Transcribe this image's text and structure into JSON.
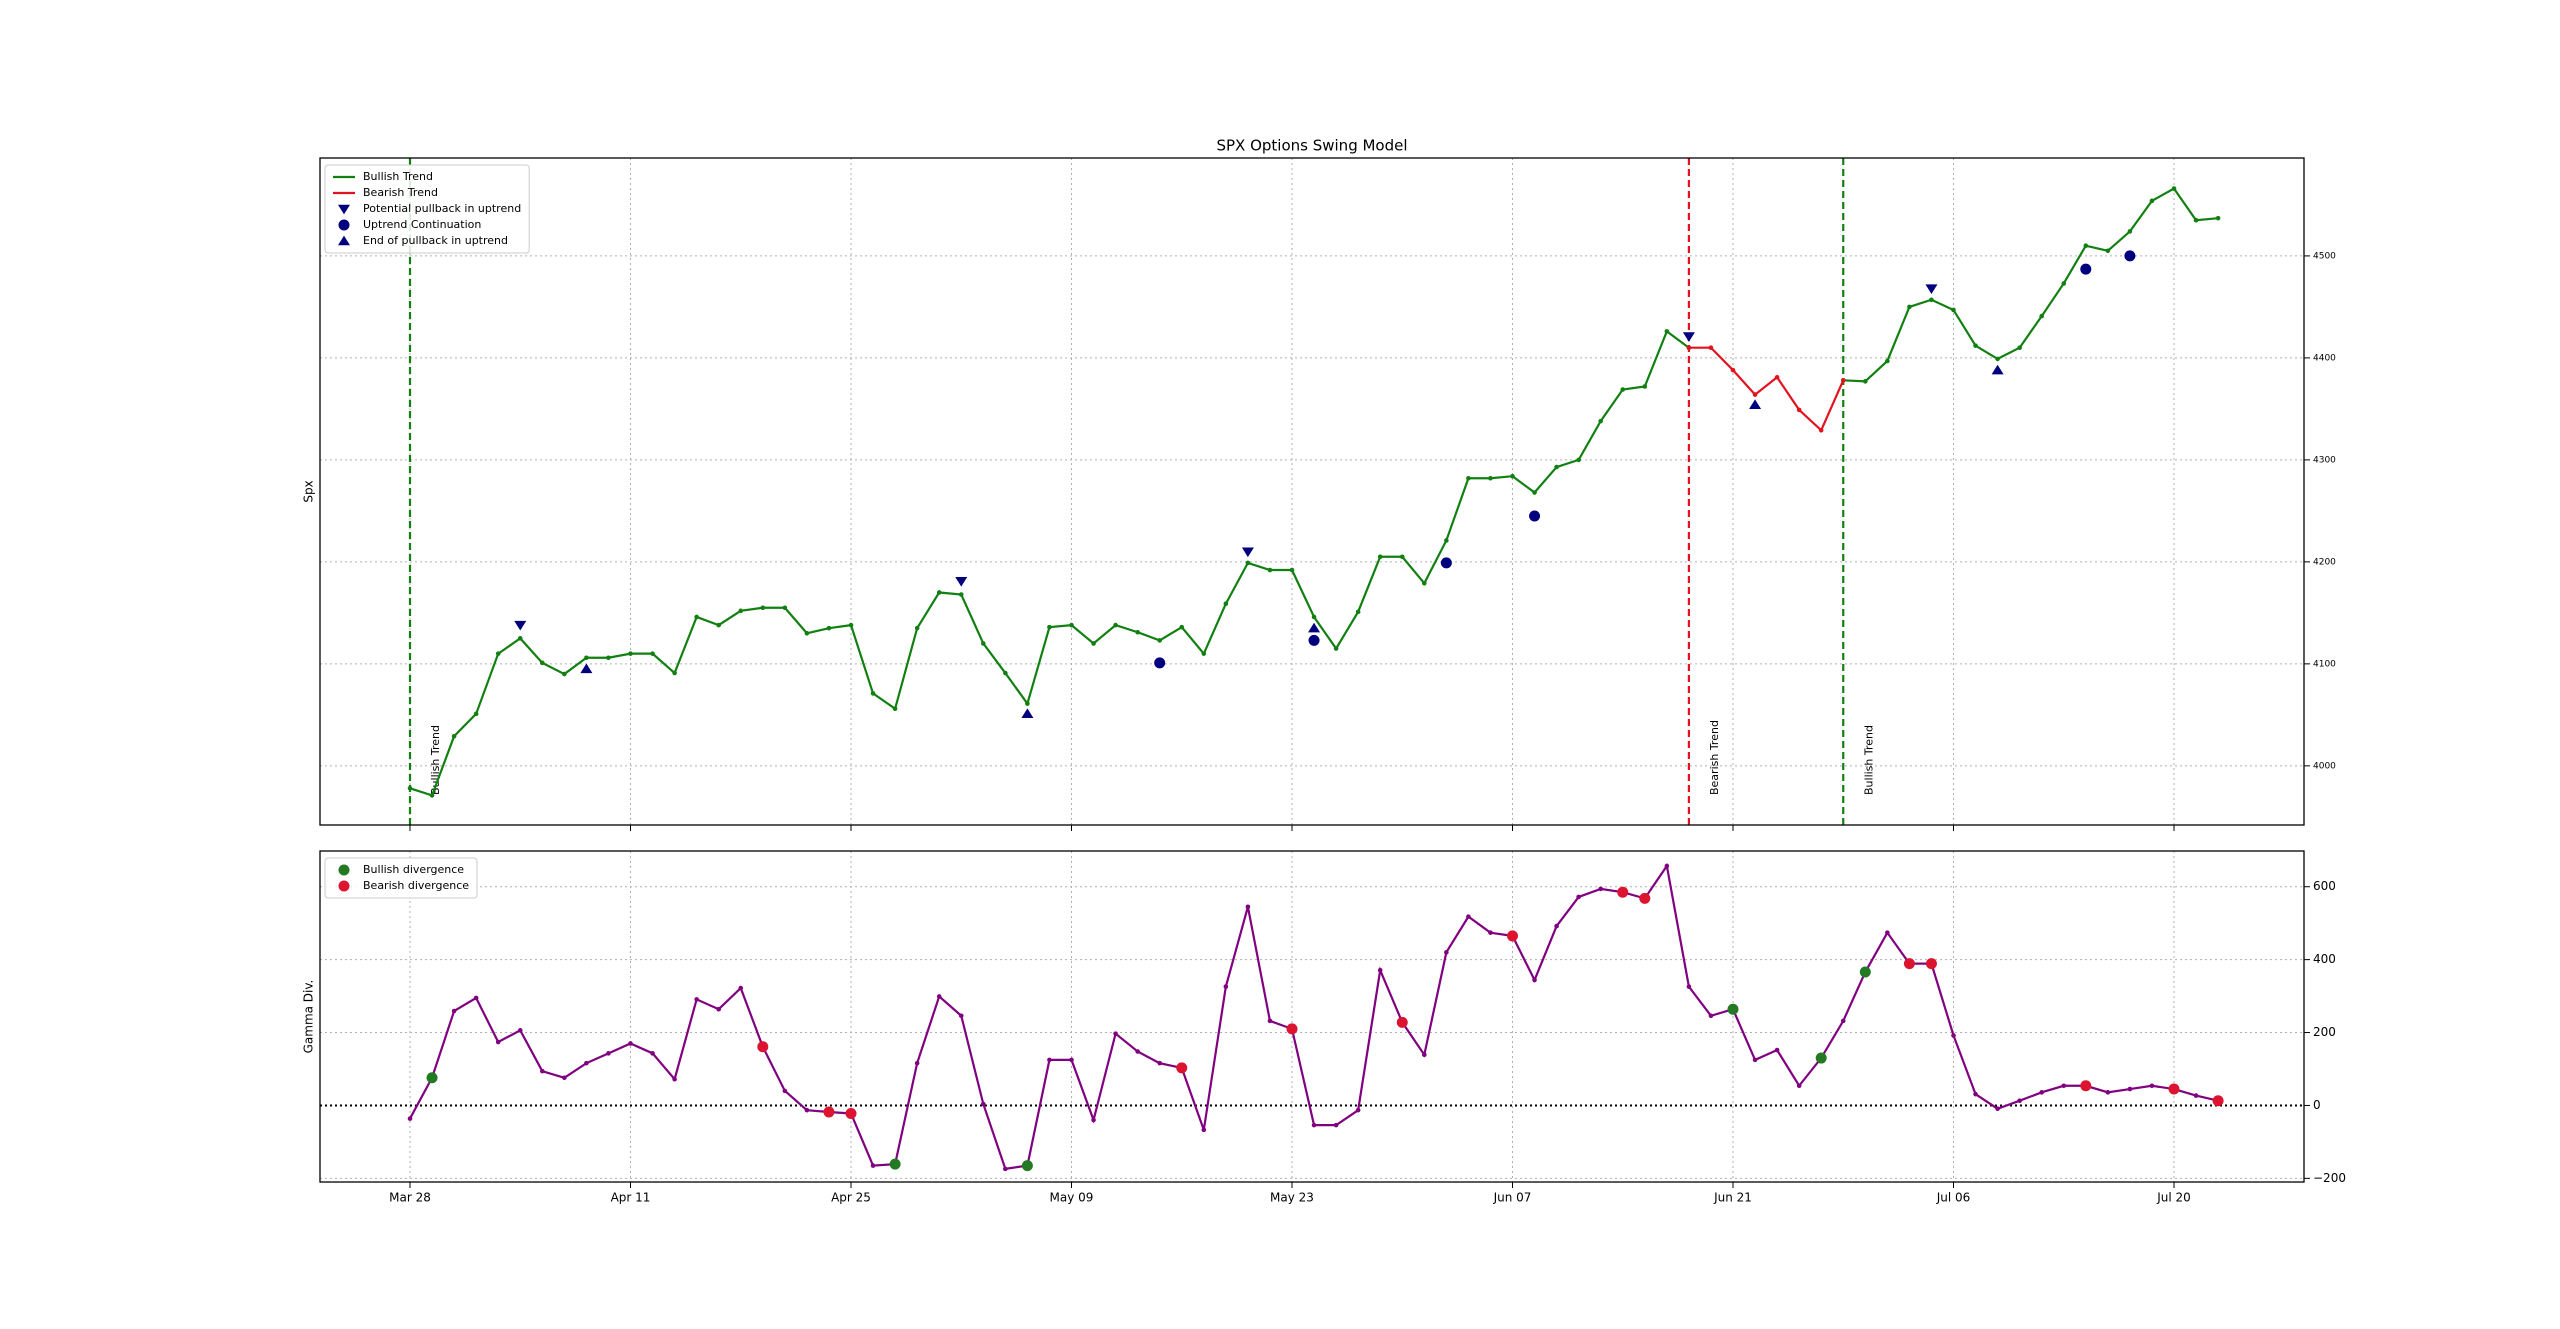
{
  "chart_data": [
    {
      "type": "line",
      "title": "SPX Options Swing Model",
      "ylabel": "Spx",
      "categories": [
        "Mar 28",
        null,
        null,
        null,
        null,
        null,
        null,
        null,
        null,
        null,
        "Apr 11",
        null,
        null,
        null,
        null,
        null,
        null,
        null,
        null,
        null,
        "Apr 25",
        null,
        null,
        null,
        null,
        null,
        null,
        null,
        null,
        null,
        "May 09",
        null,
        null,
        null,
        null,
        null,
        null,
        null,
        null,
        null,
        "May 23",
        null,
        null,
        null,
        null,
        null,
        null,
        null,
        null,
        null,
        "Jun 07",
        null,
        null,
        null,
        null,
        null,
        null,
        null,
        null,
        null,
        "Jun 21",
        null,
        null,
        null,
        null,
        null,
        null,
        null,
        null,
        null,
        "Jul 06",
        null,
        null,
        null,
        null,
        null,
        null,
        null,
        null,
        null,
        "Jul 20",
        null,
        null
      ],
      "series": [
        {
          "name": "Bullish Trend",
          "color": "#118011",
          "style": "line",
          "values": [
            3978,
            3971,
            4029,
            4051,
            4110,
            4125,
            4101,
            4090,
            4106,
            4106,
            4110,
            4110,
            4091,
            4146,
            4138,
            4152,
            4155,
            4155,
            4130,
            4135,
            4138,
            4071,
            4056,
            4135,
            4170,
            4168,
            4120,
            4091,
            4061,
            4136,
            4138,
            4120,
            4138,
            4131,
            4123,
            4136,
            4110,
            4159,
            4199,
            4192,
            4192,
            4146,
            4115,
            4151,
            4205,
            4205,
            4179,
            4221,
            4282,
            4282,
            4284,
            4268,
            4293,
            4300,
            4338,
            4369,
            4372,
            4426,
            4410,
            null,
            null,
            null,
            null,
            null,
            null,
            4378,
            4377,
            4397,
            4450,
            4457,
            4447,
            4412,
            4399,
            4410,
            4441,
            4473,
            4510,
            4505,
            4524,
            4554,
            4566,
            4535,
            4537
          ]
        },
        {
          "name": "Bearish Trend",
          "color": "#e3121f",
          "style": "line",
          "values": [
            null,
            null,
            null,
            null,
            null,
            null,
            null,
            null,
            null,
            null,
            null,
            null,
            null,
            null,
            null,
            null,
            null,
            null,
            null,
            null,
            null,
            null,
            null,
            null,
            null,
            null,
            null,
            null,
            null,
            null,
            null,
            null,
            null,
            null,
            null,
            null,
            null,
            null,
            null,
            null,
            null,
            null,
            null,
            null,
            null,
            null,
            null,
            null,
            null,
            null,
            null,
            null,
            null,
            null,
            null,
            null,
            null,
            null,
            4410,
            4410,
            4388,
            4364,
            4381,
            4349,
            4329,
            4378,
            null,
            null,
            null,
            null,
            null,
            null,
            null,
            null,
            null,
            null,
            null,
            null,
            null,
            null,
            null,
            null,
            null
          ]
        },
        {
          "name": "Potential pullback in uptrend",
          "color": "#00007f",
          "marker": "v",
          "values": [
            null,
            null,
            null,
            null,
            null,
            4138,
            null,
            null,
            null,
            null,
            null,
            null,
            null,
            null,
            null,
            null,
            null,
            null,
            null,
            null,
            null,
            null,
            null,
            null,
            null,
            4181,
            null,
            null,
            null,
            null,
            null,
            null,
            null,
            null,
            null,
            null,
            null,
            null,
            4210,
            null,
            null,
            null,
            null,
            null,
            null,
            null,
            null,
            null,
            null,
            null,
            null,
            null,
            null,
            null,
            null,
            null,
            null,
            null,
            4421,
            null,
            null,
            null,
            null,
            null,
            null,
            null,
            null,
            null,
            null,
            4468,
            null,
            null,
            null,
            null,
            null,
            null,
            null,
            null,
            null,
            null,
            null,
            null,
            null
          ]
        },
        {
          "name": "Uptrend Continuation",
          "color": "#00007f",
          "marker": "o",
          "values": [
            null,
            null,
            null,
            null,
            null,
            null,
            null,
            null,
            null,
            null,
            null,
            null,
            null,
            null,
            null,
            null,
            null,
            null,
            null,
            null,
            null,
            null,
            null,
            null,
            null,
            null,
            null,
            null,
            null,
            null,
            null,
            null,
            null,
            null,
            4101,
            null,
            null,
            null,
            null,
            null,
            null,
            4123,
            null,
            null,
            null,
            null,
            null,
            4199,
            null,
            null,
            null,
            4245,
            null,
            null,
            null,
            null,
            null,
            null,
            null,
            null,
            null,
            null,
            null,
            null,
            null,
            null,
            null,
            null,
            null,
            null,
            null,
            null,
            null,
            null,
            null,
            null,
            4487,
            null,
            4500,
            null,
            null,
            null,
            null
          ]
        },
        {
          "name": "End of pullback in uptrend",
          "color": "#00007f",
          "marker": "^",
          "values": [
            null,
            null,
            null,
            null,
            null,
            null,
            null,
            null,
            4095,
            null,
            null,
            null,
            null,
            null,
            null,
            null,
            null,
            null,
            null,
            null,
            null,
            null,
            null,
            null,
            null,
            null,
            null,
            null,
            4051,
            null,
            null,
            null,
            null,
            null,
            null,
            null,
            null,
            null,
            null,
            null,
            null,
            4135,
            null,
            null,
            null,
            null,
            null,
            null,
            null,
            null,
            null,
            null,
            null,
            null,
            null,
            null,
            null,
            null,
            null,
            null,
            null,
            4354,
            null,
            null,
            null,
            null,
            null,
            null,
            null,
            null,
            null,
            null,
            4388,
            null,
            null,
            null,
            null,
            null,
            null,
            null,
            null,
            null,
            null
          ]
        }
      ],
      "vlines": [
        {
          "category": 0,
          "label": "Bullish Trend",
          "color": "#118011"
        },
        {
          "category": 58,
          "label": "Bearish Trend",
          "color": "#e3121f"
        },
        {
          "category": 65,
          "label": "Bullish Trend",
          "color": "#118011"
        }
      ],
      "ylim": [
        3942,
        4596
      ],
      "yticks": [
        4000,
        4100,
        4200,
        4300,
        4400,
        4500
      ],
      "grid": true,
      "legend": "upper left"
    },
    {
      "type": "line",
      "ylabel": "Gamma Div.",
      "categories": [
        "Mar 28",
        null,
        null,
        null,
        null,
        null,
        null,
        null,
        null,
        null,
        "Apr 11",
        null,
        null,
        null,
        null,
        null,
        null,
        null,
        null,
        null,
        "Apr 25",
        null,
        null,
        null,
        null,
        null,
        null,
        null,
        null,
        null,
        "May 09",
        null,
        null,
        null,
        null,
        null,
        null,
        null,
        null,
        null,
        "May 23",
        null,
        null,
        null,
        null,
        null,
        null,
        null,
        null,
        null,
        "Jun 07",
        null,
        null,
        null,
        null,
        null,
        null,
        null,
        null,
        null,
        "Jun 21",
        null,
        null,
        null,
        null,
        null,
        null,
        null,
        null,
        null,
        "Jul 06",
        null,
        null,
        null,
        null,
        null,
        null,
        null,
        null,
        null,
        "Jul 20",
        null,
        null
      ],
      "series": [
        {
          "color": "#800080",
          "style": "line",
          "values": [
            -36,
            76,
            259,
            295,
            174,
            206,
            94,
            76,
            116,
            143,
            170,
            143,
            72,
            291,
            264,
            322,
            161,
            40,
            -13,
            -18,
            -22,
            -165,
            -161,
            116,
            299,
            246,
            4,
            -174,
            -165,
            125,
            125,
            -40,
            197,
            148,
            116,
            103,
            -67,
            326,
            545,
            232,
            210,
            -54,
            -54,
            -13,
            371,
            228,
            139,
            420,
            518,
            474,
            465,
            344,
            492,
            572,
            594,
            585,
            568,
            657,
            326,
            246,
            264,
            125,
            152,
            54,
            130,
            232,
            366,
            474,
            389,
            389,
            192,
            31,
            -9,
            13,
            36,
            54,
            54,
            36,
            45,
            54,
            45,
            27,
            13
          ]
        },
        {
          "name": "Bullish divergence",
          "color": "#237a23",
          "marker": "o",
          "values": [
            null,
            76,
            null,
            null,
            null,
            null,
            null,
            null,
            null,
            null,
            null,
            null,
            null,
            null,
            null,
            null,
            null,
            null,
            null,
            null,
            null,
            null,
            -161,
            null,
            null,
            null,
            null,
            null,
            -165,
            null,
            null,
            null,
            null,
            null,
            null,
            null,
            null,
            null,
            null,
            null,
            null,
            null,
            null,
            null,
            null,
            null,
            null,
            null,
            null,
            null,
            null,
            null,
            null,
            null,
            null,
            null,
            null,
            null,
            null,
            null,
            264,
            null,
            null,
            null,
            130,
            null,
            366,
            null,
            null,
            null,
            null,
            null,
            null,
            null,
            null,
            null,
            null,
            null,
            null,
            null,
            null,
            null,
            null
          ]
        },
        {
          "name": "Bearish divergence",
          "color": "#dc1430",
          "marker": "o",
          "values": [
            null,
            null,
            null,
            null,
            null,
            null,
            null,
            null,
            null,
            null,
            null,
            null,
            null,
            null,
            null,
            null,
            161,
            null,
            null,
            -18,
            -22,
            null,
            null,
            null,
            null,
            null,
            null,
            null,
            null,
            null,
            null,
            null,
            null,
            null,
            null,
            103,
            null,
            null,
            null,
            null,
            210,
            null,
            null,
            null,
            null,
            228,
            null,
            null,
            null,
            null,
            465,
            null,
            null,
            null,
            null,
            585,
            568,
            null,
            null,
            null,
            null,
            null,
            null,
            null,
            null,
            null,
            null,
            null,
            389,
            389,
            null,
            null,
            null,
            null,
            null,
            null,
            54,
            null,
            null,
            null,
            45,
            null,
            13
          ]
        }
      ],
      "hline": 0,
      "ylim": [
        -210,
        698
      ],
      "yticks": [
        {
          "value": -200,
          "label": "−200"
        },
        0,
        200,
        400,
        600
      ],
      "grid": true,
      "legend": "upper left"
    }
  ]
}
